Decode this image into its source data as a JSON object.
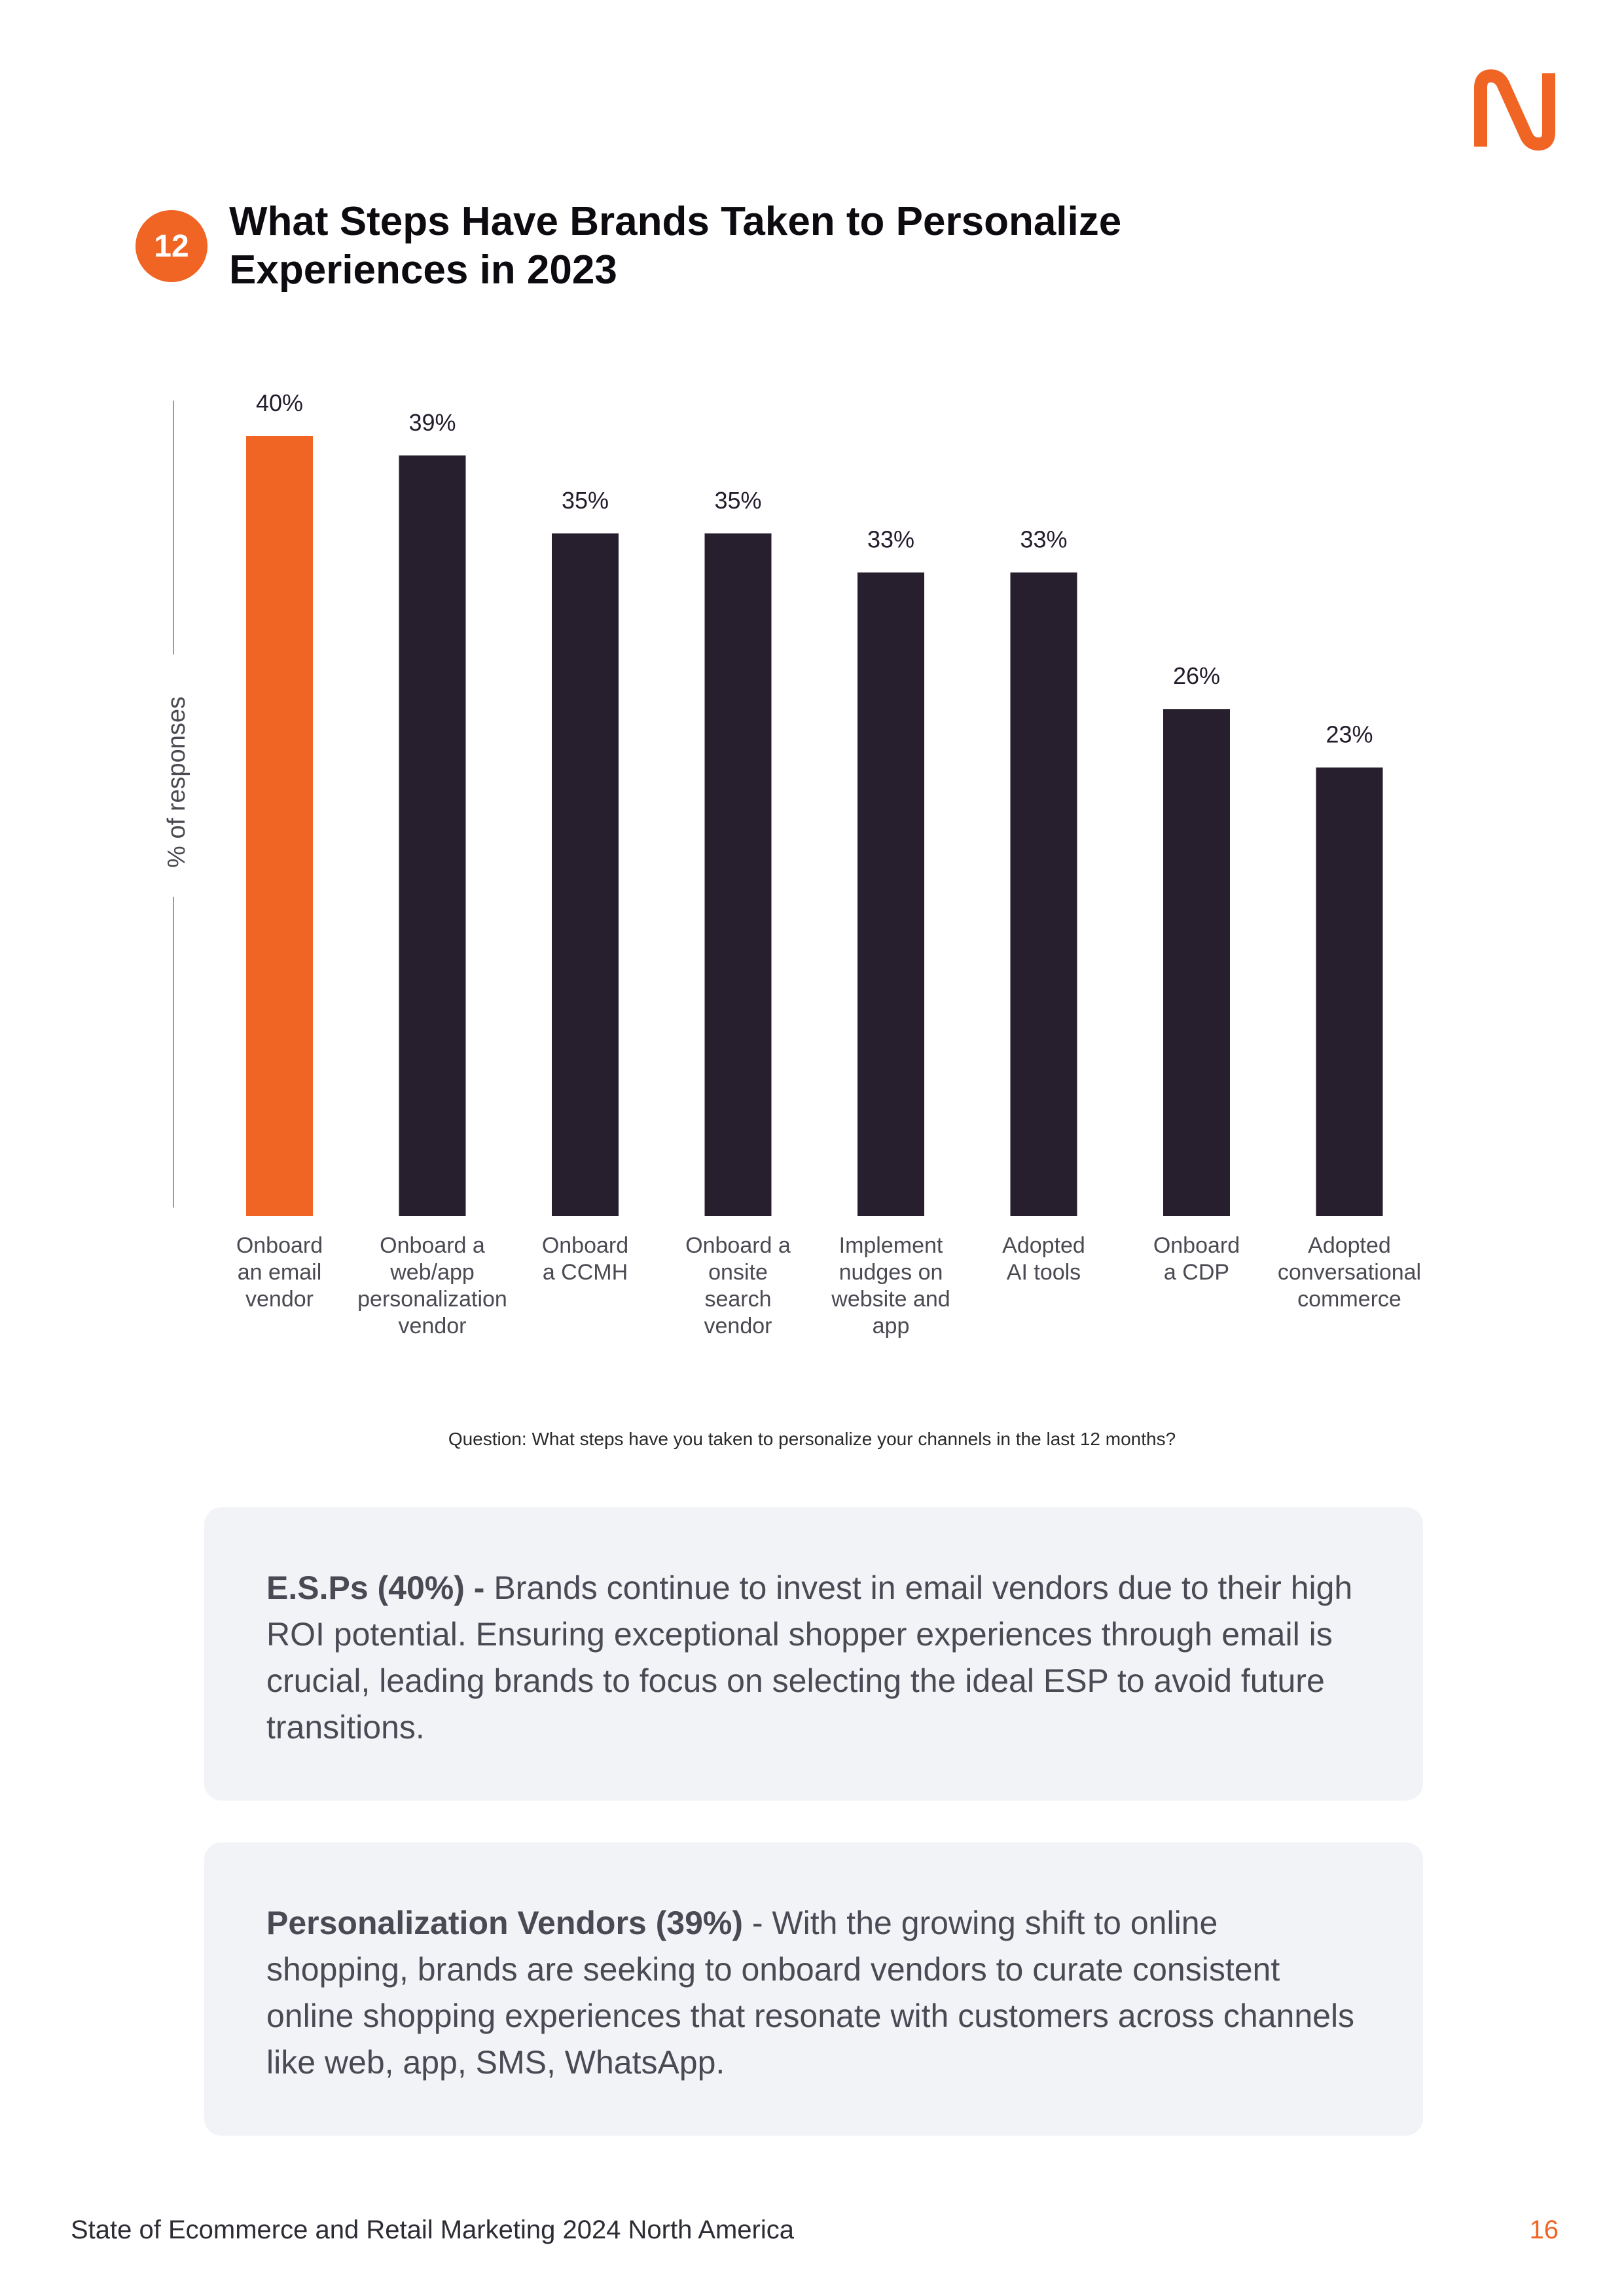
{
  "badge": "12",
  "title_lines": [
    "What Steps Have Brands Taken to Personalize",
    "Experiences in 2023"
  ],
  "colors": {
    "accent": "#f06424",
    "bar": "#271f2d",
    "card_bg": "#f2f3f6"
  },
  "chart_data": {
    "type": "bar",
    "title": "What Steps Have Brands Taken to Personalize Experiences in 2023",
    "ylabel": "% of responses",
    "xlabel": "",
    "categories": [
      "Onboard an email vendor",
      "Onboard a web/app personalization vendor",
      "Onboard a CCMH",
      "Onboard a onsite search vendor",
      "Implement nudges on website and app",
      "Adopted AI tools",
      "Onboard a CDP",
      "Adopted conversational commerce"
    ],
    "category_lines": [
      [
        "Onboard",
        "an email",
        "vendor"
      ],
      [
        "Onboard a",
        "web/app",
        "personalization",
        "vendor"
      ],
      [
        "Onboard",
        "a CCMH"
      ],
      [
        "Onboard a",
        "onsite",
        "search",
        "vendor"
      ],
      [
        "Implement",
        "nudges on",
        "website and",
        "app"
      ],
      [
        "Adopted",
        "AI tools"
      ],
      [
        "Onboard",
        "a CDP"
      ],
      [
        "Adopted",
        "conversational",
        "commerce"
      ]
    ],
    "values": [
      40,
      39,
      35,
      35,
      33,
      33,
      26,
      23
    ],
    "value_labels": [
      "40%",
      "39%",
      "35%",
      "35%",
      "33%",
      "33%",
      "26%",
      "23%"
    ],
    "highlight_index": 0,
    "ylim": [
      0,
      40
    ],
    "grid": false,
    "legend": "none"
  },
  "question": "Question: What steps have you taken to personalize your channels in the last 12 months?",
  "cards": [
    {
      "lead": "E.S.Ps (40%) -",
      "text": " Brands continue to invest in email vendors due to their high ROI potential. Ensuring exceptional shopper experiences through email is crucial, leading brands to focus on selecting the ideal ESP  to avoid future transitions."
    },
    {
      "lead": "Personalization Vendors (39%)",
      "text": " - With the growing shift to online shopping, brands are seeking to onboard vendors to curate consistent online shopping experiences that resonate with customers across channels like web, app, SMS, WhatsApp."
    }
  ],
  "footer": "State of Ecommerce and Retail Marketing 2024 North America",
  "page_number": "16"
}
